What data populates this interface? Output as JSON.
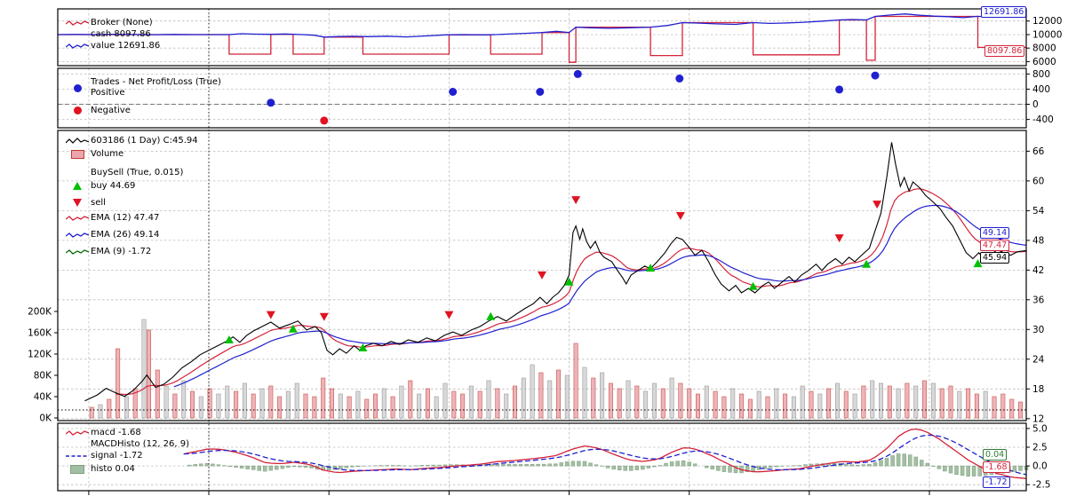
{
  "colors": {
    "red": "#d4233a",
    "blue": "#2020d0",
    "bright_red": "#e01320",
    "green": "#00c000",
    "green_line": "#0a6b0a",
    "histo": "#93b493",
    "histo_edge": "#6c8f6c",
    "vol_red_fill": "#eba6ad",
    "vol_red_edge": "#c0392b",
    "vol_gray_fill": "#d2d2d2",
    "vol_gray_edge": "#8a8a8a"
  },
  "panels": {
    "broker": {
      "title": "Broker (None)",
      "cash": "cash 8097.86",
      "value": "value 12691.86",
      "tag_value": "12691.86",
      "tag_cash": "8097.86"
    },
    "trades": {
      "title": "Trades - Net Profit/Loss (True)",
      "positive": "Positive",
      "negative": "Negative"
    },
    "price": {
      "title": "603186 (1 Day) C:45.94",
      "volume": "Volume",
      "buysell": "BuySell (True, 0.015)",
      "buy": "buy 44.69",
      "sell": "sell",
      "ema12": "EMA (12) 47.47",
      "ema26": "EMA (26) 49.14",
      "ema9": "EMA (9) -1.72",
      "tags": [
        "49.14",
        "47.47",
        "45.94"
      ]
    },
    "macd": {
      "macd": "macd -1.68",
      "title": "MACDHisto (12, 26, 9)",
      "signal": "signal -1.72",
      "histo": "histo 0.04",
      "tags": [
        "0.04",
        "-1.68",
        "-1.72"
      ]
    }
  },
  "chart_data": [
    {
      "id": "broker",
      "type": "line",
      "title": "Broker (None)",
      "ylim": [
        5400,
        13800
      ],
      "yticks": [
        12000,
        10000,
        8000,
        6000
      ],
      "ytick_labels": [
        "12000",
        "10000",
        "8000",
        "6000"
      ],
      "cash": {
        "x": [
          0,
          17.7,
          17.7,
          22.0,
          22.0,
          24.3,
          24.3,
          27.5,
          27.5,
          31.5,
          31.5,
          40.4,
          40.4,
          44.7,
          44.7,
          50.0,
          50.0,
          52.8,
          52.8,
          53.5,
          53.5,
          61.2,
          61.2,
          64.5,
          64.5,
          71.8,
          71.8,
          80.7,
          80.7,
          83.5,
          83.5,
          84.4,
          84.4,
          95.0,
          95.0,
          100
        ],
        "values": [
          10000,
          10000,
          7100,
          7100,
          10030,
          10030,
          7100,
          7100,
          9630,
          9630,
          7100,
          7100,
          9960,
          9960,
          7100,
          7100,
          10290,
          10290,
          5900,
          5900,
          11090,
          11090,
          6900,
          6900,
          11770,
          11770,
          7000,
          7000,
          12160,
          12160,
          6200,
          6200,
          12690,
          12690,
          8097.86,
          8097.86
        ]
      },
      "value": {
        "x": [
          0,
          2,
          4,
          6,
          8,
          10,
          12,
          14,
          16,
          17.7,
          19,
          20.5,
          22,
          23.5,
          25,
          26.5,
          27.5,
          29,
          30.5,
          32,
          34,
          36,
          38,
          40,
          42,
          44,
          45.5,
          47,
          48.5,
          50,
          51.5,
          52.8,
          53.5,
          55,
          57,
          59,
          61.2,
          63,
          64.5,
          66,
          68,
          70,
          71.8,
          73.5,
          75,
          77,
          79,
          80.7,
          82,
          83.5,
          84.4,
          86,
          87.5,
          89,
          90.5,
          92,
          93.5,
          95,
          96.5,
          98,
          100
        ],
        "values": [
          10000,
          10020,
          9990,
          10040,
          10010,
          9980,
          10020,
          10000,
          9990,
          10000,
          10120,
          10060,
          10030,
          10080,
          10010,
          9900,
          9630,
          9700,
          9740,
          9690,
          9760,
          9650,
          9800,
          9950,
          9990,
          9960,
          10010,
          10110,
          10190,
          10290,
          10480,
          10290,
          11090,
          11010,
          10920,
          11000,
          11090,
          11350,
          11770,
          11700,
          11580,
          11500,
          11770,
          11650,
          11700,
          11820,
          11990,
          12160,
          12230,
          12160,
          12690,
          12900,
          13050,
          12850,
          12720,
          12650,
          12500,
          12691,
          12550,
          12600,
          12691.86
        ]
      }
    },
    {
      "id": "trades",
      "type": "scatter",
      "title": "Trades - Net Profit/Loss (True)",
      "ylim": [
        -620,
        950
      ],
      "yticks": [
        800,
        400,
        0,
        -400
      ],
      "ytick_labels": [
        "800",
        "400",
        "0",
        "-400"
      ],
      "positive": [
        [
          22,
          40
        ],
        [
          40.8,
          330
        ],
        [
          49.8,
          330
        ],
        [
          53.7,
          800
        ],
        [
          64.2,
          680
        ],
        [
          80.7,
          390
        ],
        [
          84.4,
          760
        ]
      ],
      "negative": [
        [
          27.5,
          -430
        ]
      ]
    },
    {
      "id": "price",
      "type": "line",
      "title": "603186 (1 Day) C:45.94",
      "ylim": [
        11.6,
        70.2
      ],
      "yticks": [
        66,
        60,
        54,
        48,
        42,
        36,
        30,
        24,
        18,
        12
      ],
      "ytick_labels": [
        "66",
        "60",
        "54",
        "48",
        "42",
        "36",
        "30",
        "24",
        "18",
        "12"
      ],
      "vol_ticks": [
        200,
        160,
        120,
        80,
        40,
        0
      ],
      "vol_tick_labels": [
        "200K",
        "160K",
        "120K",
        "80K",
        "40K",
        "0K"
      ],
      "close": {
        "x": [
          2.8,
          4.1,
          5.0,
          6.0,
          6.9,
          7.8,
          8.7,
          9.2,
          10.1,
          11.0,
          11.9,
          12.8,
          13.8,
          14.7,
          15.6,
          16.5,
          17.4,
          18.1,
          18.8,
          19.5,
          20.2,
          21.1,
          22.0,
          22.9,
          23.9,
          24.8,
          25.7,
          26.6,
          27.2,
          27.8,
          28.4,
          29.1,
          29.8,
          30.6,
          31.2,
          31.8,
          32.6,
          33.5,
          34.4,
          35.3,
          36.2,
          37.2,
          38.1,
          39.0,
          39.9,
          40.8,
          41.7,
          42.7,
          43.6,
          44.5,
          45.4,
          46.3,
          47.2,
          48.2,
          49.1,
          49.8,
          50.5,
          51.1,
          51.7,
          52.3,
          52.8,
          53.2,
          53.5,
          53.9,
          54.2,
          54.6,
          55.0,
          55.5,
          56.0,
          56.4,
          57.2,
          57.8,
          58.3,
          58.7,
          59.2,
          59.9,
          60.6,
          61.2,
          61.9,
          62.7,
          63.3,
          63.9,
          64.5,
          65.1,
          65.8,
          66.5,
          67.2,
          67.9,
          68.5,
          69.3,
          70.0,
          70.6,
          71.3,
          72.0,
          72.8,
          73.4,
          74.0,
          74.8,
          75.5,
          76.1,
          76.8,
          77.5,
          78.3,
          78.9,
          79.5,
          80.3,
          81.0,
          81.7,
          82.3,
          83.0,
          83.8,
          84.4,
          85.0,
          85.6,
          86.1,
          86.5,
          87.0,
          87.4,
          87.9,
          88.3,
          89.0,
          89.6,
          90.4,
          91.1,
          91.7,
          92.4,
          93.1,
          93.8,
          94.5,
          95.1,
          95.6,
          96.3,
          97.0,
          97.7,
          98.4,
          99.1,
          100
        ],
        "values": [
          15.6,
          16.8,
          18.1,
          17.2,
          16.5,
          17.7,
          19.5,
          20.8,
          18.3,
          19.0,
          20.4,
          22.2,
          23.5,
          24.9,
          25.8,
          26.7,
          27.6,
          28.5,
          27.4,
          28.8,
          29.7,
          30.6,
          31.5,
          30.3,
          31.0,
          31.7,
          29.9,
          30.6,
          29.4,
          25.8,
          24.9,
          26.1,
          25.2,
          26.7,
          25.8,
          26.7,
          27.2,
          26.7,
          27.6,
          27.0,
          27.9,
          27.4,
          28.3,
          27.7,
          28.8,
          29.5,
          28.8,
          29.9,
          30.6,
          31.7,
          32.6,
          31.7,
          32.9,
          34.2,
          35.2,
          36.5,
          35.2,
          36.5,
          37.4,
          38.9,
          41.0,
          49.6,
          50.9,
          48.2,
          50.3,
          47.8,
          46.4,
          47.8,
          45.5,
          44.6,
          43.7,
          41.9,
          40.5,
          39.2,
          41.0,
          41.9,
          42.8,
          42.3,
          43.7,
          45.5,
          47.3,
          48.6,
          48.2,
          46.8,
          45.0,
          46.0,
          43.7,
          41.0,
          39.2,
          37.8,
          38.9,
          37.4,
          38.3,
          37.4,
          38.9,
          39.6,
          38.3,
          39.6,
          40.7,
          39.6,
          41.0,
          41.9,
          43.2,
          41.9,
          43.2,
          44.3,
          43.2,
          44.6,
          43.7,
          45.0,
          46.4,
          50.0,
          53.5,
          60.7,
          67.8,
          63.4,
          58.9,
          60.7,
          58.0,
          59.8,
          58.6,
          57.1,
          55.7,
          54.4,
          52.7,
          50.9,
          48.2,
          45.5,
          44.3,
          45.5,
          44.3,
          45.0,
          46.1,
          45.5,
          45.0,
          45.7,
          45.94
        ]
      },
      "buys": [
        [
          17.7,
          27.9
        ],
        [
          24.3,
          30.1
        ],
        [
          31.5,
          26.3
        ],
        [
          44.7,
          32.6
        ],
        [
          52.8,
          39.6
        ],
        [
          61.2,
          42.4
        ],
        [
          71.8,
          38.7
        ],
        [
          83.5,
          43.2
        ],
        [
          95,
          43.3
        ]
      ],
      "sells": [
        [
          22,
          33
        ],
        [
          27.5,
          32.6
        ],
        [
          40.4,
          33
        ],
        [
          50,
          41
        ],
        [
          53.5,
          56.2
        ],
        [
          64.3,
          53
        ],
        [
          80.7,
          48.5
        ],
        [
          84.6,
          55.3
        ]
      ],
      "volume_x": [
        3.5,
        4.4,
        5.3,
        6.2,
        7.1,
        8.0,
        8.9,
        9.4,
        10.3,
        11.2,
        12.1,
        13.0,
        13.9,
        14.8,
        15.7,
        16.6,
        17.5,
        18.4,
        19.3,
        20.2,
        21.1,
        22.0,
        22.9,
        23.8,
        24.7,
        25.6,
        26.5,
        27.4,
        28.3,
        29.2,
        30.1,
        31.0,
        31.9,
        32.8,
        33.7,
        34.6,
        35.5,
        36.4,
        37.3,
        38.2,
        39.1,
        40.0,
        40.9,
        41.8,
        42.7,
        43.6,
        44.5,
        45.4,
        46.3,
        47.2,
        48.1,
        49.0,
        49.9,
        50.8,
        51.7,
        52.6,
        53.5,
        54.4,
        55.3,
        56.2,
        57.1,
        58.0,
        58.9,
        59.8,
        60.7,
        61.6,
        62.5,
        63.4,
        64.3,
        65.2,
        66.1,
        67.0,
        67.9,
        68.8,
        69.7,
        70.6,
        71.5,
        72.4,
        73.3,
        74.2,
        75.1,
        76.0,
        76.9,
        77.8,
        78.7,
        79.6,
        80.5,
        81.4,
        82.3,
        83.2,
        84.1,
        85.0,
        85.9,
        86.8,
        87.7,
        88.6,
        89.5,
        90.4,
        91.3,
        92.2,
        93.1,
        94.0,
        94.9,
        95.8,
        96.7,
        97.6,
        98.5,
        99.4
      ],
      "volume_v": [
        20,
        25,
        35,
        130,
        40,
        55,
        185,
        165,
        90,
        60,
        45,
        70,
        50,
        40,
        55,
        45,
        60,
        50,
        65,
        45,
        55,
        60,
        40,
        50,
        65,
        45,
        40,
        75,
        55,
        45,
        40,
        50,
        35,
        45,
        55,
        40,
        60,
        70,
        45,
        55,
        40,
        65,
        50,
        45,
        60,
        50,
        70,
        55,
        45,
        60,
        75,
        100,
        85,
        70,
        90,
        80,
        140,
        95,
        75,
        85,
        65,
        55,
        70,
        60,
        50,
        65,
        55,
        75,
        65,
        55,
        45,
        60,
        50,
        40,
        55,
        45,
        35,
        50,
        40,
        55,
        45,
        40,
        60,
        50,
        45,
        55,
        65,
        50,
        45,
        60,
        70,
        65,
        60,
        55,
        65,
        60,
        70,
        65,
        55,
        60,
        50,
        55,
        45,
        50,
        40,
        45,
        35,
        30
      ],
      "volume_c": [
        1,
        0,
        1,
        1,
        0,
        1,
        0,
        1,
        1,
        0,
        1,
        0,
        1,
        0,
        1,
        0,
        0,
        1,
        0,
        1,
        0,
        1,
        1,
        0,
        0,
        1,
        1,
        1,
        1,
        0,
        1,
        0,
        1,
        1,
        0,
        1,
        0,
        1,
        0,
        1,
        0,
        0,
        1,
        1,
        0,
        1,
        0,
        1,
        0,
        1,
        0,
        0,
        1,
        0,
        1,
        0,
        1,
        0,
        1,
        0,
        1,
        1,
        0,
        1,
        0,
        0,
        1,
        0,
        1,
        1,
        1,
        0,
        1,
        1,
        0,
        1,
        1,
        0,
        1,
        0,
        1,
        0,
        0,
        1,
        0,
        1,
        0,
        1,
        0,
        1,
        0,
        0,
        1,
        0,
        1,
        0,
        1,
        0,
        1,
        1,
        0,
        1,
        1,
        0,
        1,
        1,
        1,
        1
      ]
    },
    {
      "id": "macd",
      "type": "line",
      "title": "MACDHisto (12, 26, 9)",
      "ylim": [
        -3.3,
        5.7
      ],
      "yticks": [
        5.0,
        2.5,
        0.0,
        -2.5
      ],
      "ytick_labels": [
        "5.0",
        "2.5",
        "0.0",
        "-2.5"
      ],
      "macd": {
        "x": [
          13,
          14.5,
          15.6,
          17,
          18.5,
          20,
          21.5,
          23,
          24.5,
          26,
          27.5,
          29,
          30.5,
          32,
          33.5,
          35,
          36.5,
          38,
          39.5,
          41,
          42.5,
          44,
          45.5,
          47,
          48.5,
          50,
          51.5,
          53,
          54.5,
          56,
          57.5,
          59,
          60.5,
          62,
          63.5,
          64.8,
          66,
          67.5,
          69,
          70.5,
          72,
          73.5,
          75,
          76.5,
          78,
          79.5,
          81,
          82.5,
          84,
          85.5,
          87,
          88.3,
          89.5,
          91,
          92.5,
          94,
          95.5,
          97,
          98.5,
          100
        ],
        "values": [
          1.6,
          2.0,
          2.3,
          2.2,
          1.8,
          1.2,
          0.4,
          0.3,
          0.5,
          0.2,
          -0.6,
          -0.9,
          -0.7,
          -0.6,
          -0.5,
          -0.4,
          -0.5,
          -0.3,
          -0.2,
          0.0,
          0.1,
          0.3,
          0.6,
          0.7,
          0.9,
          1.1,
          1.4,
          2.2,
          2.7,
          2.3,
          1.5,
          0.8,
          0.6,
          0.9,
          1.9,
          2.5,
          2.2,
          1.4,
          0.4,
          -0.5,
          -0.8,
          -0.7,
          -0.5,
          -0.4,
          0.0,
          0.3,
          0.6,
          0.5,
          0.8,
          2.2,
          4.2,
          5.0,
          4.7,
          3.6,
          2.2,
          0.8,
          -0.3,
          -1.0,
          -1.5,
          -1.68
        ]
      }
    }
  ]
}
